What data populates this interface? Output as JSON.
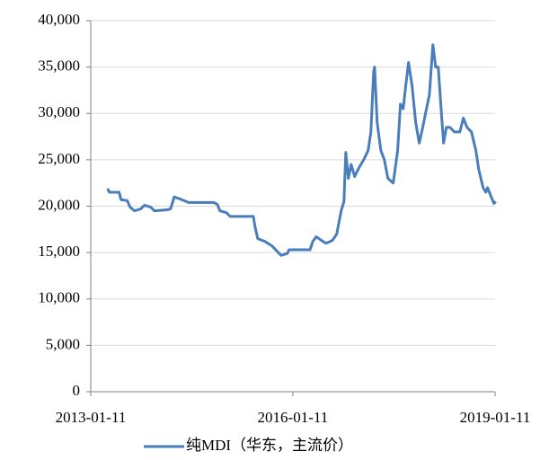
{
  "chart_data": {
    "type": "line",
    "x": [
      "2013-04-12",
      "2013-04-22",
      "2013-06-14",
      "2013-06-24",
      "2013-07-28",
      "2013-08-12",
      "2013-09-05",
      "2013-10-09",
      "2013-10-29",
      "2013-12-02",
      "2013-12-22",
      "2014-02-23",
      "2014-03-19",
      "2014-03-29",
      "2014-04-08",
      "2014-05-07",
      "2014-06-25",
      "2014-11-08",
      "2014-11-28",
      "2014-12-12",
      "2015-01-16",
      "2015-02-05",
      "2015-06-11",
      "2015-06-20",
      "2015-07-05",
      "2015-08-13",
      "2015-09-21",
      "2015-10-15",
      "2015-11-08",
      "2015-12-12",
      "2015-12-22",
      "2016-04-13",
      "2016-04-28",
      "2016-05-17",
      "2016-06-15",
      "2016-07-09",
      "2016-08-12",
      "2016-09-05",
      "2016-09-29",
      "2016-10-14",
      "2016-10-24",
      "2016-11-07",
      "2016-11-22",
      "2016-12-11",
      "2017-01-05",
      "2017-01-29",
      "2017-02-22",
      "2017-03-09",
      "2017-03-24",
      "2017-03-29",
      "2017-04-12",
      "2017-05-02",
      "2017-05-21",
      "2017-06-09",
      "2017-07-08",
      "2017-08-01",
      "2017-08-16",
      "2017-08-31",
      "2017-09-14",
      "2017-09-29",
      "2017-10-18",
      "2017-11-07",
      "2017-11-26",
      "2017-12-15",
      "2017-12-30",
      "2018-01-20",
      "2018-02-08",
      "2018-02-23",
      "2018-03-09",
      "2018-03-28",
      "2018-04-07",
      "2018-04-22",
      "2018-05-11",
      "2018-06-05",
      "2018-07-04",
      "2018-07-23",
      "2018-08-12",
      "2018-09-05",
      "2018-09-29",
      "2018-10-14",
      "2018-11-07",
      "2018-11-22",
      "2018-12-01",
      "2018-12-21",
      "2019-01-05",
      "2019-01-15"
    ],
    "series": [
      {
        "name": "纯MDI（华东，主流价）",
        "color": "#4a7ebb",
        "values": [
          21900,
          21500,
          21500,
          20700,
          20600,
          19900,
          19500,
          19700,
          20100,
          19900,
          19500,
          19600,
          19700,
          20300,
          21000,
          20800,
          20400,
          20400,
          20200,
          19500,
          19300,
          18900,
          18900,
          17800,
          16500,
          16200,
          15700,
          15200,
          14700,
          14900,
          15300,
          15300,
          16200,
          16700,
          16300,
          16000,
          16300,
          17000,
          19500,
          20500,
          25800,
          23000,
          24500,
          23200,
          24200,
          25000,
          26000,
          28000,
          34500,
          35000,
          29000,
          26000,
          25000,
          23000,
          22500,
          26000,
          31000,
          30500,
          33000,
          35500,
          33000,
          29000,
          26800,
          28500,
          30000,
          32000,
          37400,
          35000,
          35000,
          29500,
          26800,
          28500,
          28500,
          28000,
          28000,
          29500,
          28500,
          28000,
          26000,
          24000,
          22000,
          21500,
          22000,
          21000,
          20300,
          20500
        ]
      }
    ],
    "xlim": [
      "2013-01-11",
      "2019-01-11"
    ],
    "xticks": [
      "2013-01-11",
      "2016-01-11",
      "2019-01-11"
    ],
    "ylim": [
      0,
      40000
    ],
    "yticks": [
      0,
      {
        "value": 5000,
        "label": "5,000"
      },
      {
        "value": 10000,
        "label": "10,000"
      },
      {
        "value": 15000,
        "label": "15,000"
      },
      {
        "value": 20000,
        "label": "20,000"
      },
      {
        "value": 25000,
        "label": "25,000"
      },
      {
        "value": 30000,
        "label": "30,000"
      },
      {
        "value": 35000,
        "label": "35,000"
      },
      {
        "value": 40000,
        "label": "40,000"
      }
    ],
    "grid": true,
    "legend": "bottom"
  }
}
